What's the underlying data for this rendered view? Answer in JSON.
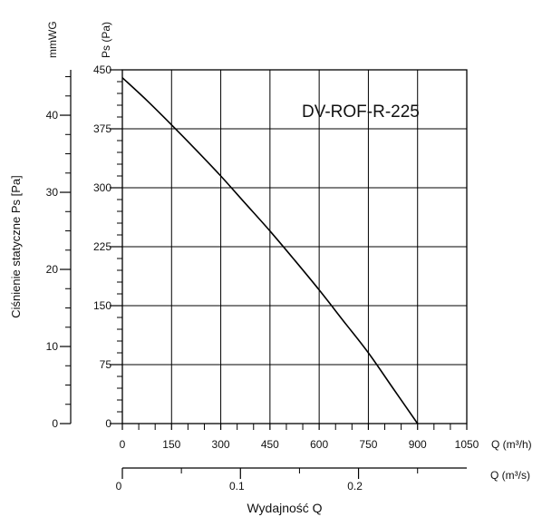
{
  "chart_data": {
    "type": "line",
    "model_label": "DV-ROF-R-225",
    "ylabel": "Ciśnienie statyczne Ps [Pa]",
    "xlabel": "Wydajność Q",
    "y_unit_pa": "Ps (Pa)",
    "y_unit_mmwg": "mmWG",
    "x_unit_m3h": "Q (m³/h)",
    "x_unit_m3s": "Q (m³/s)",
    "xlim": [
      0,
      1050
    ],
    "ylim": [
      0,
      450
    ],
    "grid": true,
    "pa_ticks": [
      "0",
      "75",
      "150",
      "225",
      "300",
      "375",
      "450"
    ],
    "mmwg_ticks": [
      "0",
      "10",
      "20",
      "30",
      "40"
    ],
    "m3h_ticks": [
      "0",
      "150",
      "300",
      "450",
      "600",
      "750",
      "900",
      "1050"
    ],
    "m3s_ticks": [
      "0",
      "0.1",
      "0.2"
    ],
    "series": [
      {
        "x": [
          0,
          75,
          150,
          225,
          300,
          375,
          450,
          525,
          600,
          675,
          750,
          825,
          900
        ],
        "y": [
          440,
          411,
          380,
          348,
          315,
          280,
          245,
          208,
          170,
          130,
          90,
          45,
          0
        ]
      }
    ]
  }
}
